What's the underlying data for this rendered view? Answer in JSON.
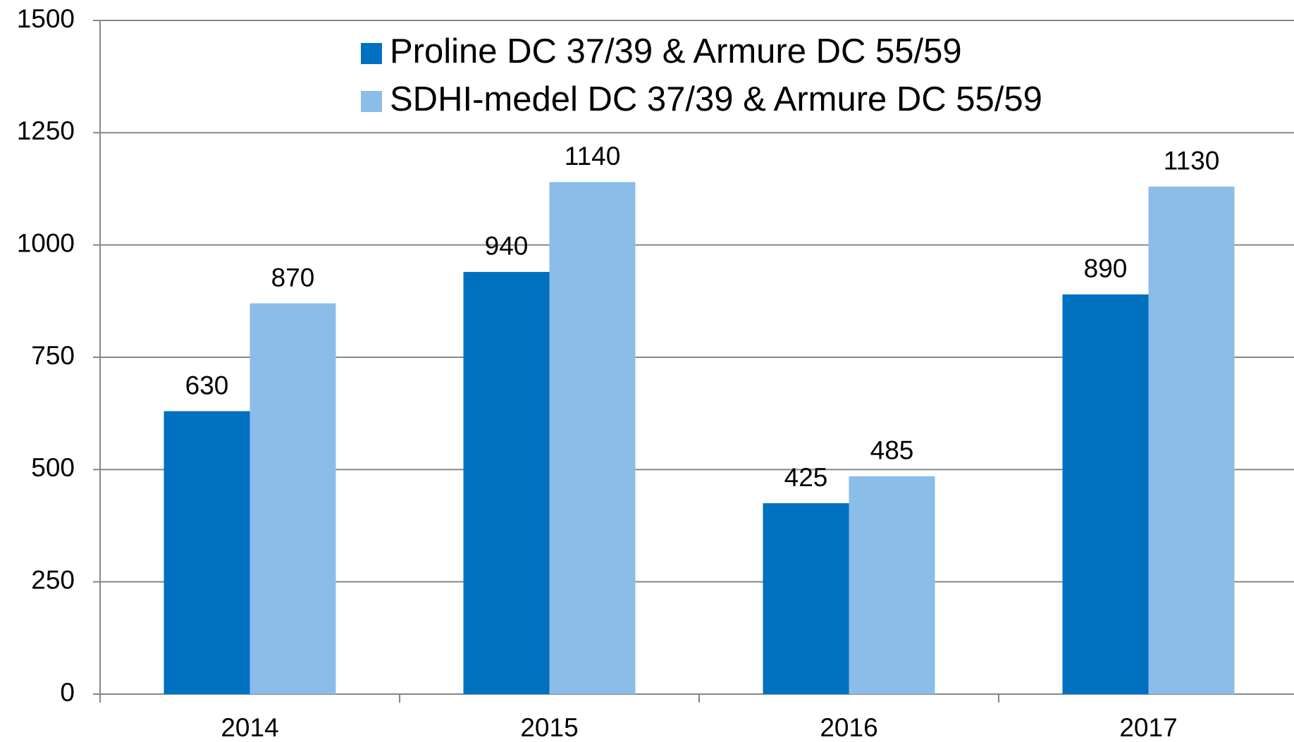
{
  "chart_data": {
    "type": "bar",
    "categories": [
      "2014",
      "2015",
      "2016",
      "2017"
    ],
    "series": [
      {
        "name": "Proline DC 37/39 & Armure DC 55/59",
        "color": "#0070c0",
        "values": [
          630,
          940,
          425,
          890
        ]
      },
      {
        "name": "SDHI-medel DC 37/39 & Armure DC 55/59",
        "color": "#8bbde9",
        "values": [
          870,
          1140,
          485,
          1130
        ]
      }
    ],
    "ylim": [
      0,
      1500
    ],
    "yticks": [
      0,
      250,
      500,
      750,
      1000,
      1250,
      1500
    ],
    "grid": true,
    "legend": "top"
  }
}
